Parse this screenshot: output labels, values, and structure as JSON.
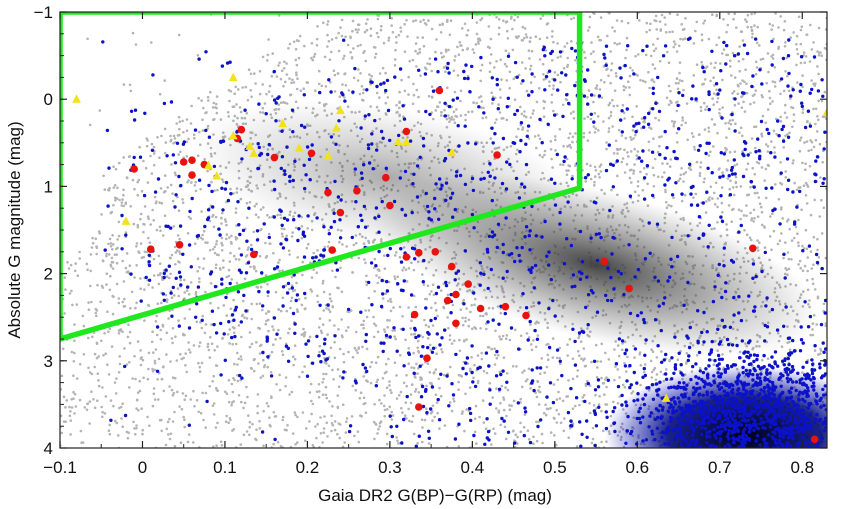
{
  "chart_data": {
    "type": "scatter",
    "title": "",
    "xlabel": "Gaia DR2 G(BP)−G(RP) (mag)",
    "ylabel": "Absolute G magnitude (mag)",
    "xlim": [
      -0.1,
      0.83
    ],
    "ylim": [
      4,
      -1
    ],
    "y_inverted": true,
    "x_ticks": [
      -0.1,
      0,
      0.1,
      0.2,
      0.3,
      0.4,
      0.5,
      0.6,
      0.7,
      0.8
    ],
    "x_tick_labels": [
      "−0.1",
      "0",
      "0.1",
      "0.2",
      "0.3",
      "0.4",
      "0.5",
      "0.6",
      "0.7",
      "0.8"
    ],
    "y_ticks": [
      -1,
      0,
      1,
      2,
      3,
      4
    ],
    "y_tick_labels": [
      "−1",
      "0",
      "1",
      "2",
      "3",
      "4"
    ],
    "grid": false,
    "colors": {
      "background_field": "#b4b4b4",
      "dense_field": "#4a4a4a",
      "blue_series": "#0b12c8",
      "red_series": "#e8130f",
      "yellow_series": "#f2e21b",
      "selection_box": "#1fe81f"
    },
    "series": [
      {
        "marker": "circle",
        "color": "#e8130f",
        "x": [
          0.36,
          -0.01,
          0.05,
          0.06,
          0.075,
          0.06,
          0.115,
          0.12,
          0.16,
          0.205,
          0.225,
          0.24,
          0.26,
          0.295,
          0.3,
          0.32,
          0.43,
          0.01,
          0.045,
          0.135,
          0.23,
          0.32,
          0.335,
          0.355,
          0.375,
          0.395,
          0.38,
          0.37,
          0.41,
          0.44,
          0.465,
          0.56,
          0.59,
          0.74,
          0.33,
          0.38,
          0.345,
          0.335,
          0.815
        ],
        "y": [
          -0.1,
          0.8,
          0.72,
          0.87,
          0.75,
          0.7,
          0.45,
          0.35,
          0.67,
          0.62,
          1.07,
          1.3,
          1.05,
          0.9,
          1.22,
          0.37,
          0.64,
          1.72,
          1.67,
          1.78,
          1.73,
          1.81,
          1.76,
          1.75,
          1.92,
          2.12,
          2.24,
          2.31,
          2.4,
          2.38,
          2.48,
          1.86,
          2.17,
          1.71,
          2.47,
          2.57,
          2.97,
          3.53,
          3.9
        ]
      },
      {
        "marker": "triangle",
        "color": "#f2e21b",
        "x": [
          -0.08,
          0.11,
          0.24,
          0.235,
          0.19,
          0.13,
          0.17,
          0.225,
          0.31,
          0.32,
          0.375,
          0.11,
          0.135,
          0.08,
          0.09,
          -0.02,
          0.635,
          0.83
        ],
        "y": [
          0.0,
          -0.25,
          0.13,
          0.33,
          0.56,
          0.54,
          0.28,
          0.65,
          0.49,
          0.49,
          0.61,
          0.42,
          0.62,
          0.76,
          0.88,
          1.4,
          3.43,
          0.15
        ]
      }
    ],
    "annotations": [
      {
        "type": "polygon",
        "color": "#1fe81f",
        "points": [
          [
            -0.1,
            -1.0
          ],
          [
            0.53,
            -1.0
          ],
          [
            0.53,
            1.02
          ],
          [
            -0.1,
            2.75
          ]
        ]
      }
    ]
  }
}
